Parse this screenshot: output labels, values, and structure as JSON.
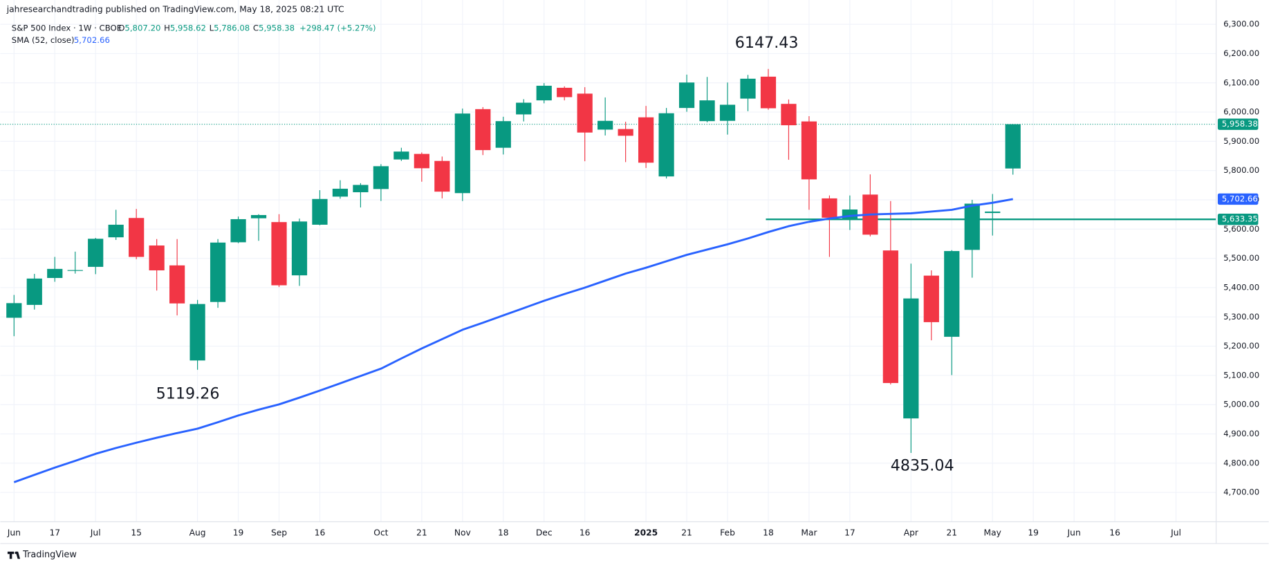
{
  "header": {
    "publisher": "jahresearchandtrading published on TradingView.com, May 18, 2025 08:21 UTC",
    "symbol": "S&P 500 Index · 1W · CBOE",
    "ohlc_names": [
      "O",
      "H",
      "L",
      "C"
    ],
    "ohlc_values": [
      "5,807.20",
      "5,958.62",
      "5,786.08",
      "5,958.38"
    ],
    "change": "+298.47 (+5.27%)",
    "sma_name": "SMA (52, close)",
    "sma_value": "5,702.66"
  },
  "footer": {
    "brand": "TradingView"
  },
  "chart_data": {
    "type": "candlestick",
    "categories": [
      "Jun",
      null,
      "17",
      null,
      "Jul",
      null,
      "15",
      null,
      null,
      "Aug",
      null,
      "19",
      null,
      "Sep",
      null,
      "16",
      null,
      null,
      "Oct",
      null,
      "21",
      null,
      "Nov",
      null,
      "18",
      null,
      "Dec",
      null,
      "16",
      null,
      null,
      "2025",
      null,
      "21",
      null,
      "Feb",
      null,
      "18",
      null,
      "Mar",
      null,
      "17",
      null,
      null,
      "Apr",
      null,
      "21",
      null,
      "May",
      null,
      "19",
      null,
      "Jun",
      null,
      "16",
      null,
      null,
      "Jul"
    ],
    "open": [
      5297,
      5341,
      5433,
      5459,
      5471,
      5572,
      5638,
      5544,
      5476,
      5151,
      5351,
      5555,
      5637,
      5624,
      5442,
      5615,
      5711,
      5726,
      5737,
      5838,
      5857,
      5833,
      5723,
      6010,
      5878,
      5992,
      6040,
      6083,
      6063,
      5940,
      5942,
      5982,
      5780,
      6014,
      5969,
      5970,
      6046,
      6121,
      6028,
      5968,
      5705,
      5635,
      5718,
      5527,
      4953,
      5441,
      5232,
      5529,
      5655,
      5807.2,
      null,
      null,
      null,
      null,
      null,
      null,
      null,
      null
    ],
    "high": [
      5375,
      5447,
      5505,
      5523,
      5570,
      5666,
      5669,
      5566,
      5566,
      5358,
      5566,
      5643,
      5651,
      5651,
      5636,
      5733,
      5767,
      5757,
      5822,
      5878,
      5862,
      5848,
      6012,
      6017,
      5984,
      6044,
      6099,
      6088,
      6085,
      6050,
      5967,
      6021,
      6014,
      6128,
      6120,
      6101,
      6127,
      6147.43,
      6043,
      5986,
      5715,
      5715,
      5787,
      5696,
      5482,
      5459,
      5528,
      5700,
      5720,
      5958.62,
      null,
      null,
      null,
      null,
      null,
      null,
      null,
      null
    ],
    "low": [
      5234,
      5325,
      5420,
      5448,
      5446,
      5563,
      5497,
      5390,
      5305,
      5119.26,
      5331,
      5552,
      5560,
      5402,
      5406,
      5613,
      5704,
      5674,
      5696,
      5833,
      5762,
      5705,
      5696,
      5853,
      5855,
      5968,
      6030,
      6040,
      5832,
      5920,
      5829,
      5809,
      5773,
      6001,
      5965,
      5923,
      6003,
      6008,
      5837,
      5666,
      5505,
      5597,
      5575,
      5069,
      4835.04,
      5220,
      5101,
      5434,
      5578,
      5786.08,
      null,
      null,
      null,
      null,
      null,
      null,
      null,
      null
    ],
    "close": [
      5347,
      5431,
      5464,
      5460,
      5567,
      5615,
      5505,
      5459,
      5346,
      5344,
      5554,
      5634,
      5648,
      5408,
      5626,
      5703,
      5738,
      5751,
      5815,
      5865,
      5808,
      5728,
      5995,
      5870,
      5969,
      6032,
      6090,
      6051,
      5930,
      5970,
      5919,
      5827,
      5996,
      6101,
      6040,
      6025,
      6114,
      6013,
      5955,
      5770,
      5639,
      5667,
      5581,
      5074,
      5363,
      5282,
      5525,
      5687,
      5660,
      5958.38,
      null,
      null,
      null,
      null,
      null,
      null,
      null,
      null
    ],
    "up_color": "#089981",
    "down_color": "#f23645",
    "overlays": [
      {
        "name": "SMA (52, close)",
        "color": "#2962ff",
        "values": [
          4735,
          4760,
          4785,
          4808,
          4832,
          4852,
          4870,
          4887,
          4903,
          4918,
          4940,
          4963,
          4983,
          5001,
          5024,
          5048,
          5073,
          5098,
          5123,
          5158,
          5192,
          5224,
          5256,
          5280,
          5305,
          5330,
          5355,
          5378,
          5400,
          5424,
          5448,
          5468,
          5490,
          5512,
          5530,
          5548,
          5568,
          5590,
          5610,
          5625,
          5636,
          5645,
          5650,
          5652,
          5654,
          5660,
          5666,
          5680,
          5690,
          5702.66,
          null,
          null,
          null,
          null,
          null,
          null,
          null,
          null
        ]
      }
    ],
    "hline": {
      "value": 5633.35,
      "color": "#089981"
    },
    "price_tags": [
      {
        "value": 5958.38,
        "label": "5,958.38",
        "color": "#089981"
      },
      {
        "value": 5702.66,
        "label": "5,702.66",
        "color": "#2962ff"
      },
      {
        "value": 5633.35,
        "label": "5,633.35",
        "color": "#089981"
      }
    ],
    "ylim": [
      4600,
      6383
    ],
    "yticks": [
      {
        "value": 4700,
        "label": "4,700.00"
      },
      {
        "value": 4800,
        "label": "4,800.00"
      },
      {
        "value": 4900,
        "label": "4,900.00"
      },
      {
        "value": 5000,
        "label": "5,000.00"
      },
      {
        "value": 5100,
        "label": "5,100.00"
      },
      {
        "value": 5200,
        "label": "5,200.00"
      },
      {
        "value": 5300,
        "label": "5,300.00"
      },
      {
        "value": 5400,
        "label": "5,400.00"
      },
      {
        "value": 5500,
        "label": "5,500.00"
      },
      {
        "value": 5600,
        "label": "5,600.00"
      },
      {
        "value": 5700,
        "label": "5,700.00"
      },
      {
        "value": 5800,
        "label": "5,800.00"
      },
      {
        "value": 5900,
        "label": "5,900.00"
      },
      {
        "value": 6000,
        "label": "6,000.00"
      },
      {
        "value": 6100,
        "label": "6,100.00"
      },
      {
        "value": 6200,
        "label": "6,200.00"
      },
      {
        "value": 6300,
        "label": "6,300.00"
      }
    ],
    "grid": true
  }
}
